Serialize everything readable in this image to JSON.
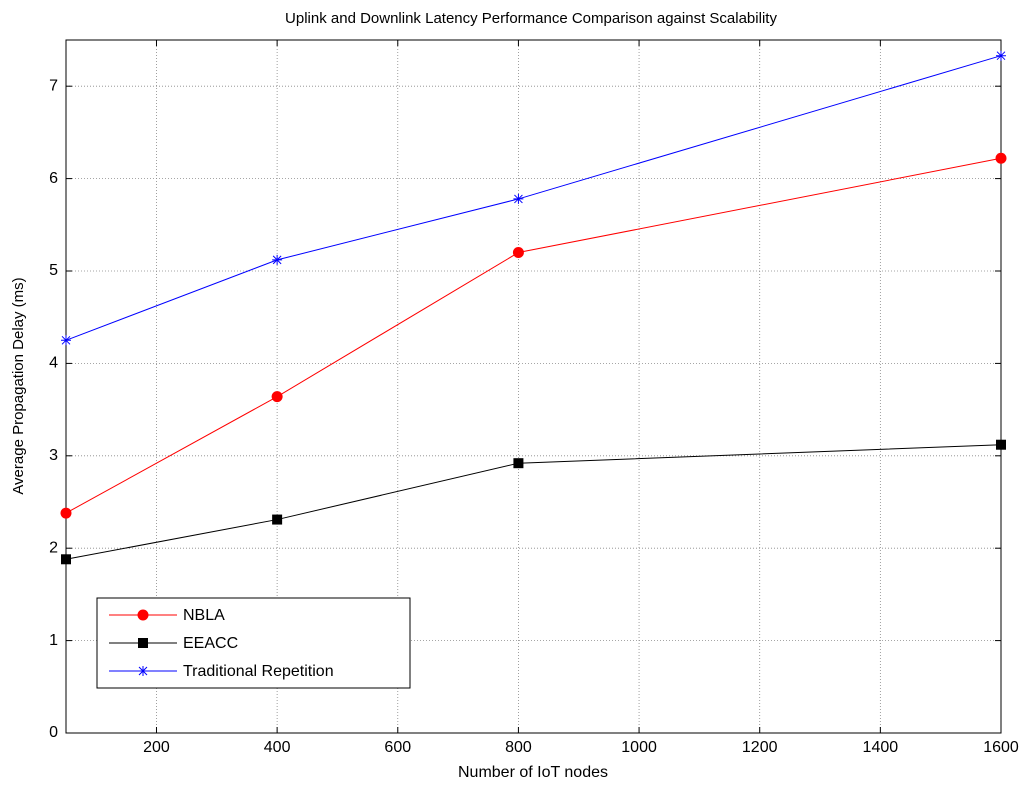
{
  "chart_data": {
    "type": "line",
    "title": "Uplink and Downlink Latency Performance Comparison against Scalability",
    "x_label": "Number of IoT nodes",
    "y_label": "Average Propagation Delay (ms)",
    "x": [
      50,
      400,
      800,
      1600
    ],
    "series": [
      {
        "name": "NBLA",
        "color": "#ff0000",
        "marker": "circle",
        "values": [
          2.38,
          3.64,
          5.2,
          6.22
        ]
      },
      {
        "name": "EEACC",
        "color": "#000000",
        "marker": "square",
        "values": [
          1.88,
          2.31,
          2.92,
          3.12
        ]
      },
      {
        "name": "Traditional Repetition",
        "color": "#0000ff",
        "marker": "star",
        "values": [
          4.25,
          5.12,
          5.78,
          7.33
        ]
      }
    ],
    "xlim": [
      50,
      1600
    ],
    "ylim": [
      0,
      7.5
    ],
    "xticks": [
      200,
      400,
      600,
      800,
      1000,
      1200,
      1400,
      1600
    ],
    "yticks": [
      0,
      1,
      2,
      3,
      4,
      5,
      6,
      7
    ],
    "grid": true,
    "legend": "lower left"
  }
}
